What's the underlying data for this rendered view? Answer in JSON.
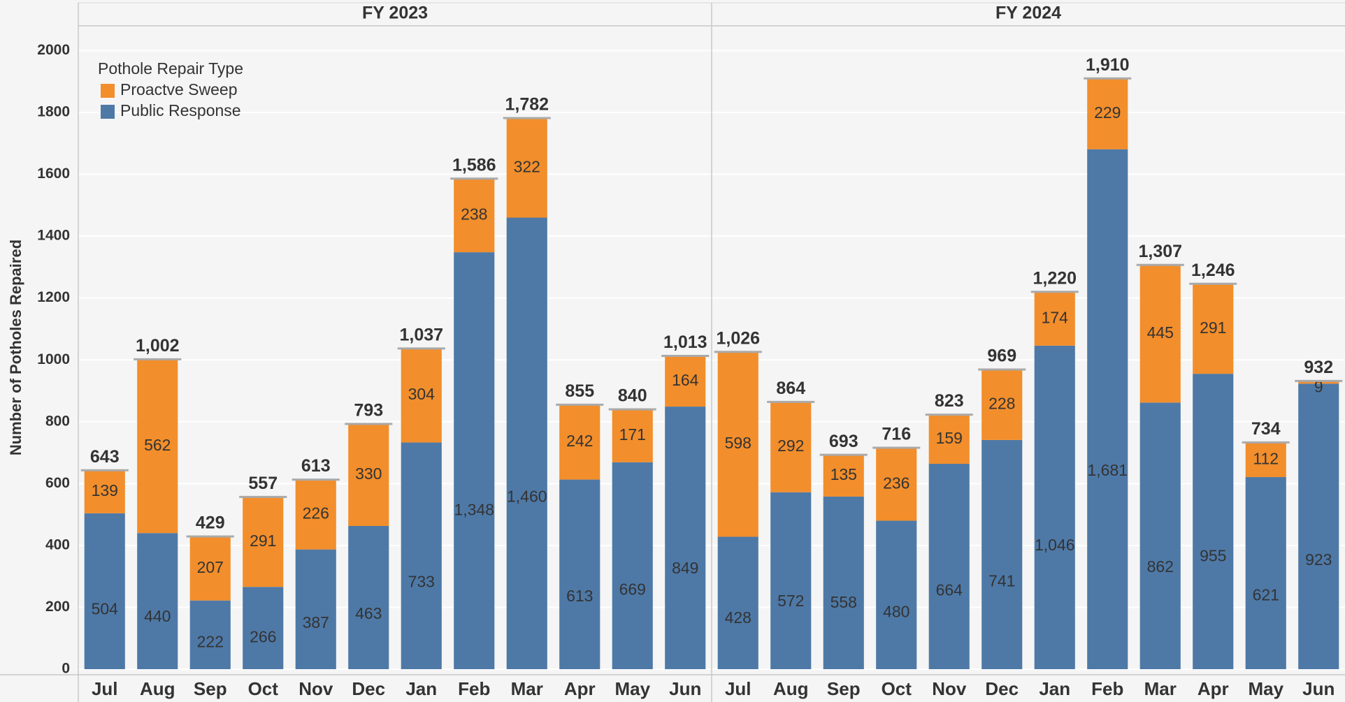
{
  "chart_data": [
    {
      "type": "bar",
      "stacked": true,
      "title": "FY 2023",
      "ylabel": "Number of Potholes Repaired",
      "legend_title": "Pothole Repair Type",
      "ylim": [
        0,
        2080
      ],
      "yticks": [
        0,
        200,
        400,
        600,
        800,
        1000,
        1200,
        1400,
        1600,
        1800,
        2000
      ],
      "grid": true,
      "categories": [
        "Jul",
        "Aug",
        "Sep",
        "Oct",
        "Nov",
        "Dec",
        "Jan",
        "Feb",
        "Mar",
        "Apr",
        "May",
        "Jun"
      ],
      "series": [
        {
          "name": "Public Response",
          "color": "#4e79a7",
          "values": [
            504,
            440,
            222,
            266,
            387,
            463,
            733,
            1348,
            1460,
            613,
            669,
            849
          ],
          "value_labels": [
            "504",
            "440",
            "222",
            "266",
            "387",
            "463",
            "733",
            "1,348",
            "1,460",
            "613",
            "669",
            "849"
          ]
        },
        {
          "name": "Proactve Sweep",
          "color": "#f28e2b",
          "values": [
            139,
            562,
            207,
            291,
            226,
            330,
            304,
            238,
            322,
            242,
            171,
            164
          ],
          "value_labels": [
            "139",
            "562",
            "207",
            "291",
            "226",
            "330",
            "304",
            "238",
            "322",
            "242",
            "171",
            "164"
          ]
        }
      ],
      "total_labels": [
        "643",
        "1,002",
        "429",
        "557",
        "613",
        "793",
        "1,037",
        "1,586",
        "1,782",
        "855",
        "840",
        "1,013"
      ]
    },
    {
      "type": "bar",
      "stacked": true,
      "title": "FY 2024",
      "categories": [
        "Jul",
        "Aug",
        "Sep",
        "Oct",
        "Nov",
        "Dec",
        "Jan",
        "Feb",
        "Mar",
        "Apr",
        "May",
        "Jun"
      ],
      "series": [
        {
          "color": "#4e79a7",
          "values": [
            428,
            572,
            558,
            480,
            664,
            741,
            1046,
            1681,
            862,
            955,
            621,
            923
          ],
          "value_labels": [
            "428",
            "572",
            "558",
            "480",
            "664",
            "741",
            "1,046",
            "1,681",
            "862",
            "955",
            "621",
            "923"
          ]
        },
        {
          "color": "#f28e2b",
          "values": [
            598,
            292,
            135,
            236,
            159,
            228,
            174,
            229,
            445,
            291,
            112,
            9
          ],
          "value_labels": [
            "598",
            "292",
            "135",
            "236",
            "159",
            "228",
            "174",
            "229",
            "445",
            "291",
            "112",
            "9"
          ]
        }
      ],
      "total_labels": [
        "1,026",
        "864",
        "693",
        "716",
        "823",
        "969",
        "1,220",
        "1,910",
        "1,307",
        "1,246",
        "734",
        "932"
      ]
    }
  ]
}
